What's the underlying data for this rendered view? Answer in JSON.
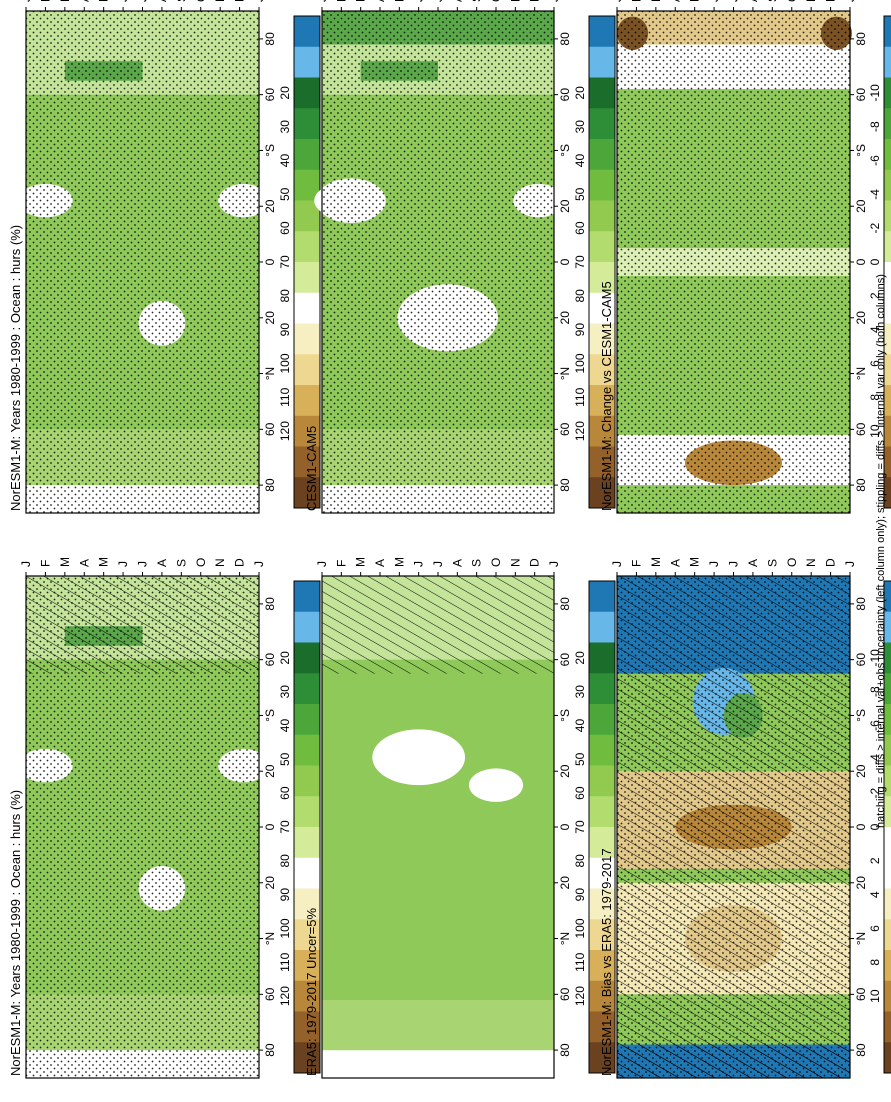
{
  "figure": {
    "footnote": "hatching = diffs > internal var+obs uncertainty (left column only); stippling = diffs > internal var only (both columns)"
  },
  "colors": {
    "pos_scale": [
      "#1f78b4",
      "#67b8e8",
      "#1a6d2a",
      "#2e8d37",
      "#4ca63a",
      "#6fbc3f",
      "#92ca50",
      "#b3dc6e",
      "#d4ec9a",
      "#ffffff",
      "#f6efc1",
      "#eed891",
      "#d9b05a",
      "#b9873a",
      "#94612a",
      "#6b4220"
    ]
  },
  "chart_data": [
    {
      "type": "heatmap",
      "title": "NorESM1-M: Years 1980-1999 : Ocean : hurs (%)",
      "x_ticks": [
        "J",
        "F",
        "M",
        "A",
        "M",
        "J",
        "J",
        "A",
        "S",
        "O",
        "N",
        "D",
        "J"
      ],
      "y_ticks": [
        "80",
        "60",
        "°N",
        "20",
        "0",
        "20",
        "°S",
        "60",
        "80"
      ],
      "colorbar": {
        "ticks": [
          "120",
          "110",
          "100",
          "90",
          "80",
          "70",
          "60",
          "50",
          "40",
          "30",
          "20"
        ]
      },
      "hatching": "right third of panel (northern high latitudes)",
      "stippling": true
    },
    {
      "type": "heatmap",
      "title": "NorESM1-M: Years 1980-1999 : Ocean : hurs (%)",
      "x_ticks": [
        "J",
        "F",
        "M",
        "A",
        "M",
        "J",
        "J",
        "A",
        "S",
        "O",
        "N",
        "D",
        "J"
      ],
      "y_ticks": [
        "80",
        "60",
        "°N",
        "20",
        "0",
        "20",
        "°S",
        "60",
        "80"
      ],
      "colorbar": {
        "ticks": [
          "120",
          "110",
          "100",
          "90",
          "80",
          "70",
          "60",
          "50",
          "40",
          "30",
          "20"
        ]
      },
      "stippling": true
    },
    {
      "type": "heatmap",
      "title": "ERA5: 1979-2017 Uncer=5%",
      "x_ticks": [
        "J",
        "F",
        "M",
        "A",
        "M",
        "J",
        "J",
        "A",
        "S",
        "O",
        "N",
        "D",
        "J"
      ],
      "y_ticks": [
        "80",
        "60",
        "°N",
        "20",
        "0",
        "20",
        "°S",
        "60",
        "80"
      ],
      "colorbar": {
        "ticks": [
          "120",
          "110",
          "100",
          "90",
          "80",
          "70",
          "60",
          "50",
          "40",
          "30",
          "20"
        ]
      },
      "hatching": "northern high latitudes"
    },
    {
      "type": "heatmap",
      "title": "CESM1-CAM5",
      "x_ticks": [
        "J",
        "F",
        "M",
        "A",
        "M",
        "J",
        "J",
        "A",
        "S",
        "O",
        "N",
        "D",
        "J"
      ],
      "y_ticks": [
        "80",
        "60",
        "°N",
        "20",
        "0",
        "20",
        "°S",
        "60",
        "80"
      ],
      "colorbar": {
        "ticks": [
          "120",
          "110",
          "100",
          "90",
          "80",
          "70",
          "60",
          "50",
          "40",
          "30",
          "20"
        ]
      },
      "stippling": true
    },
    {
      "type": "heatmap",
      "title": "NorESM1-M: Bias vs ERA5: 1979-2017",
      "x_ticks": [
        "J",
        "F",
        "M",
        "A",
        "M",
        "J",
        "J",
        "A",
        "S",
        "O",
        "N",
        "D",
        "J"
      ],
      "y_ticks": [
        "80",
        "60",
        "°N",
        "20",
        "0",
        "20",
        "°S",
        "60",
        "80"
      ],
      "colorbar": {
        "ticks": [
          "10",
          "8",
          "6",
          "4",
          "2",
          "0",
          "-2",
          "-4",
          "-6",
          "-8",
          "-10"
        ]
      },
      "hatching": true,
      "stippling": true
    },
    {
      "type": "heatmap",
      "title": "NorESM1-M: Change vs CESM1-CAM5",
      "x_ticks": [
        "J",
        "F",
        "M",
        "A",
        "M",
        "J",
        "J",
        "A",
        "S",
        "O",
        "N",
        "D",
        "J"
      ],
      "y_ticks": [
        "80",
        "60",
        "°N",
        "20",
        "0",
        "20",
        "°S",
        "60",
        "80"
      ],
      "colorbar": {
        "ticks": [
          "10",
          "8",
          "6",
          "4",
          "2",
          "0",
          "-2",
          "-4",
          "-6",
          "-8",
          "-10"
        ]
      },
      "stippling": true
    }
  ]
}
